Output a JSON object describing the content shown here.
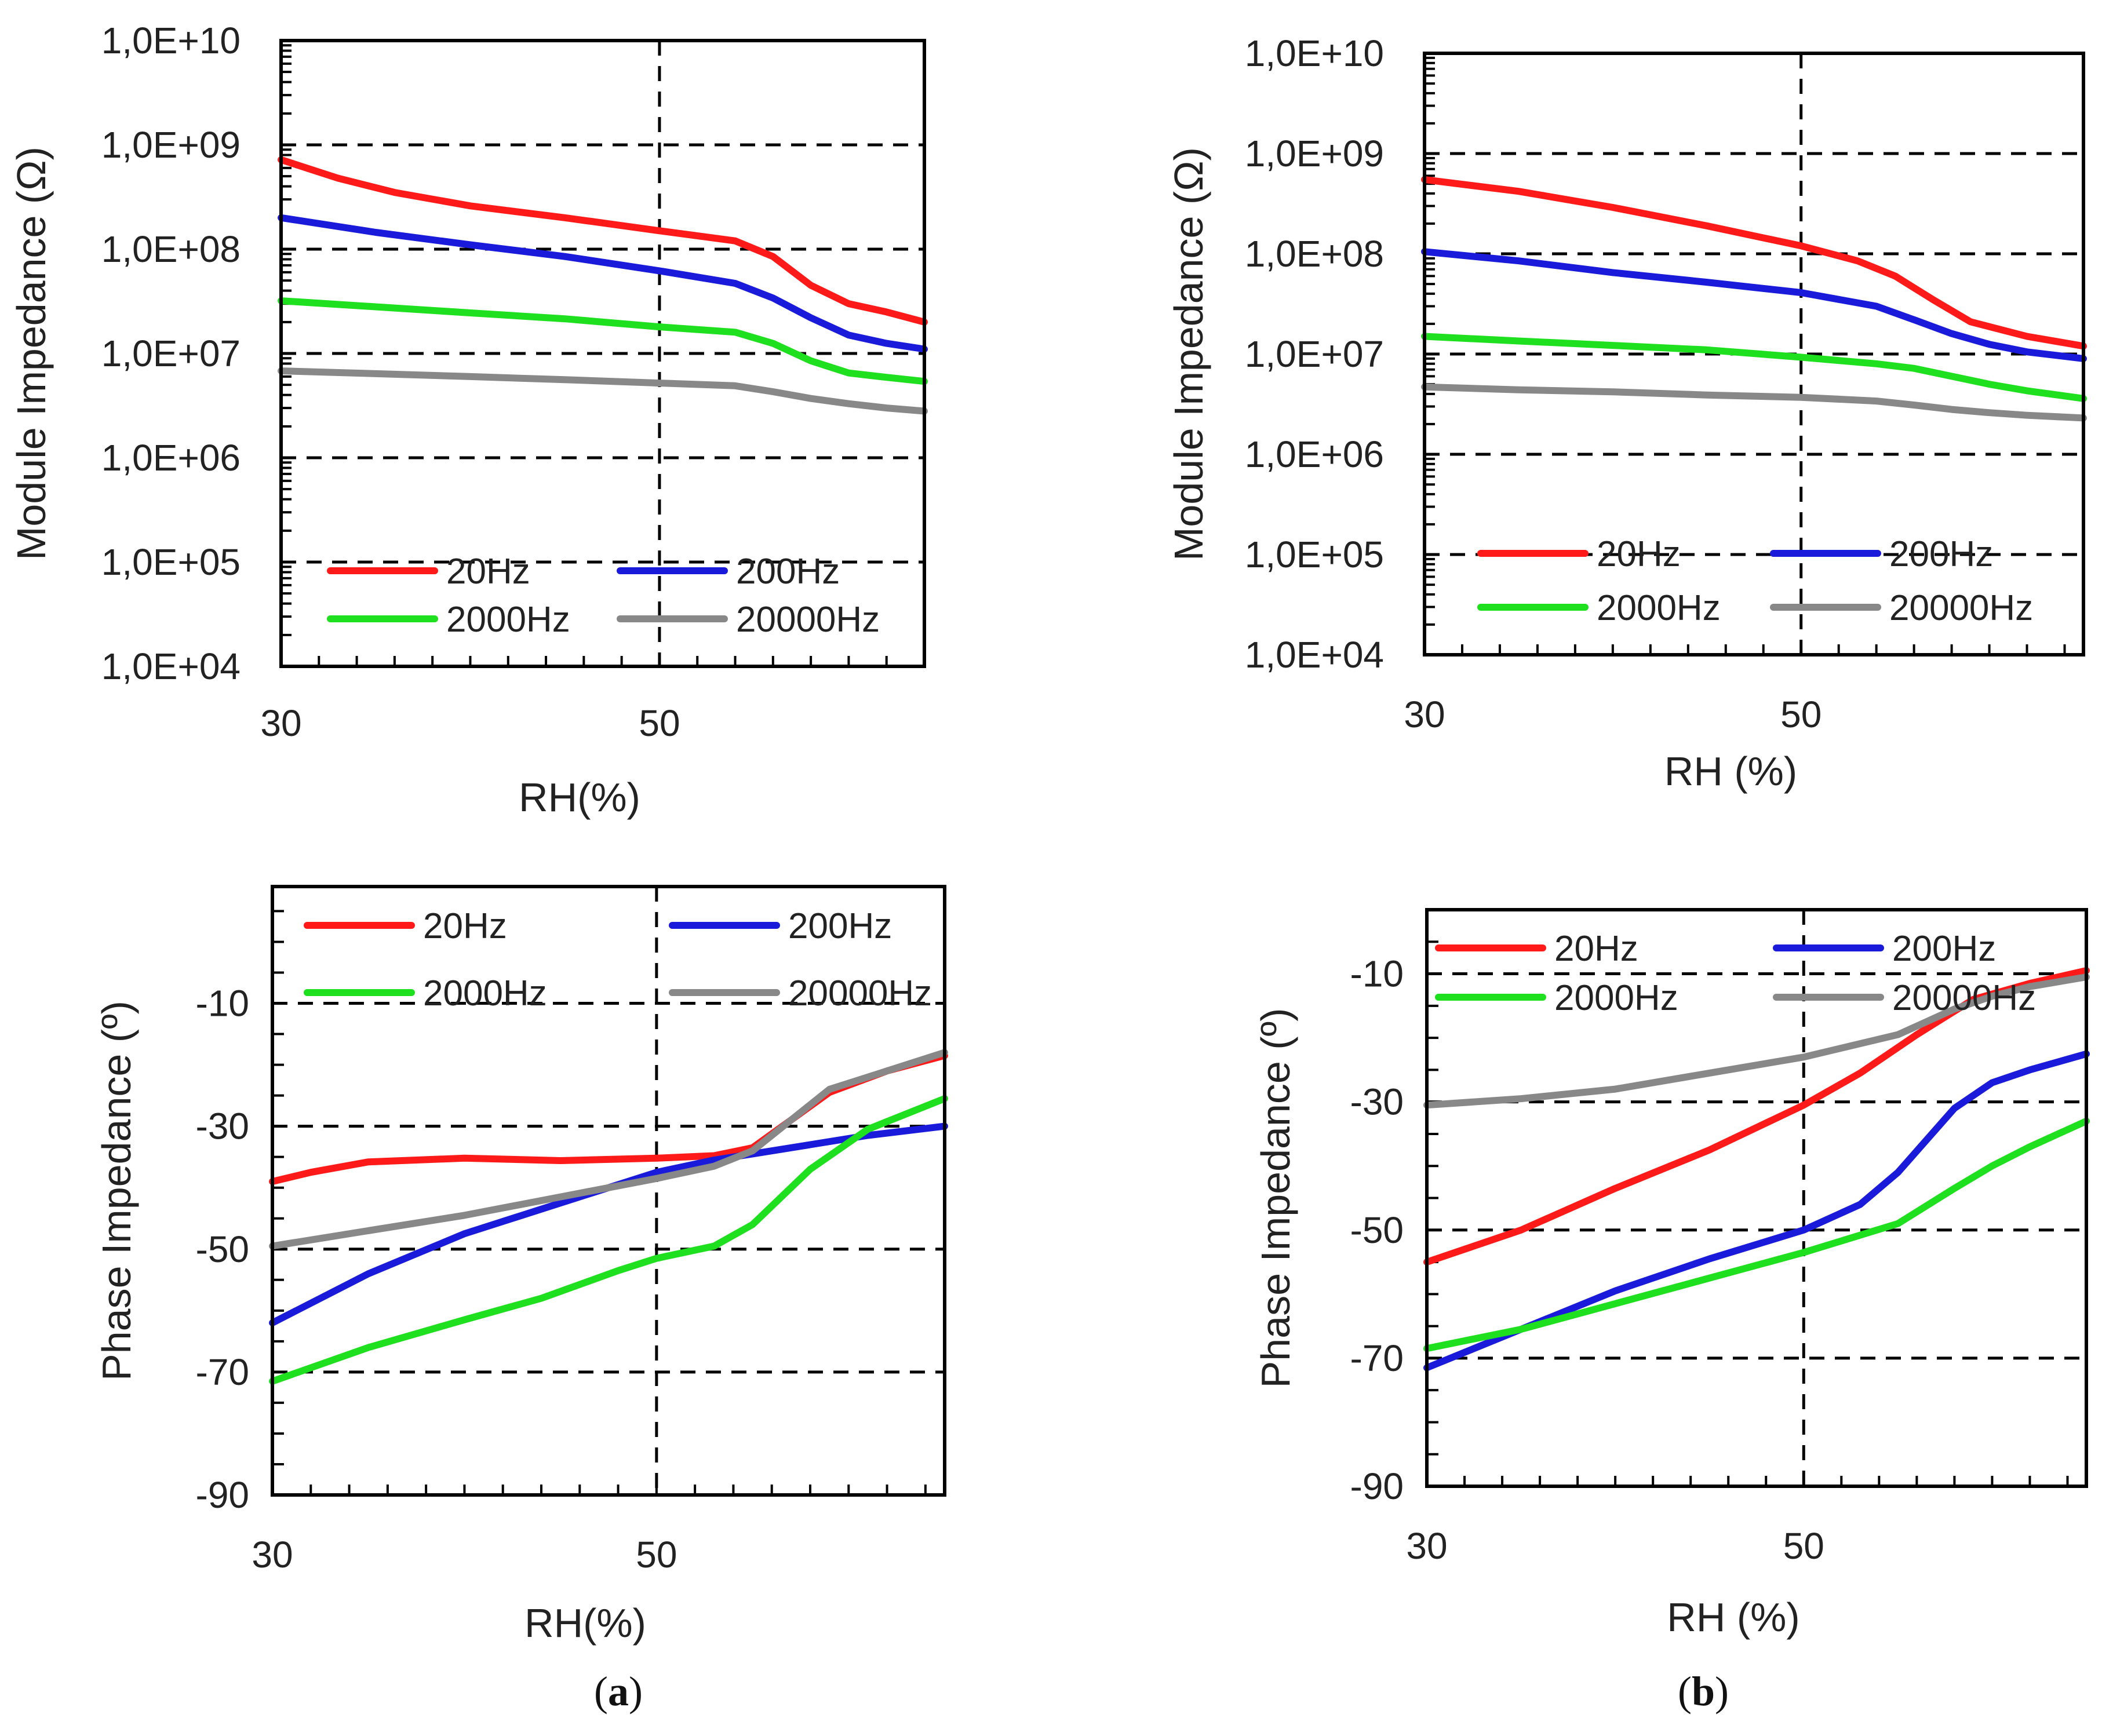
{
  "captions": [
    {
      "open": "(",
      "letter": "a",
      "close": ")"
    },
    {
      "open": "(",
      "letter": "b",
      "close": ")"
    }
  ],
  "chart_data": [
    {
      "id": "a-module",
      "type": "line",
      "scale": "log",
      "xlabel": "RH(%)",
      "ylabel": "Module Impedance (Ω)",
      "xlim": [
        30,
        64
      ],
      "ylim": [
        10000,
        10000000000
      ],
      "xticks": [
        30,
        50
      ],
      "yticks": [
        10000,
        100000,
        1000000,
        10000000,
        100000000,
        1000000000,
        10000000000
      ],
      "ytick_labels": [
        "1,0E+04",
        "1,0E+05",
        "1,0E+06",
        "1,0E+07",
        "1,0E+08",
        "1,0E+09",
        "1,0E+10"
      ],
      "grid": "dashed at major ticks",
      "legend": "lower-left, inside plot",
      "series": [
        {
          "name": "20Hz",
          "color": "#ff1a1a",
          "points": [
            [
              30,
              720000000
            ],
            [
              33,
              480000000
            ],
            [
              36,
              350000000
            ],
            [
              40,
              260000000
            ],
            [
              45,
              200000000
            ],
            [
              50,
              150000000
            ],
            [
              54,
              120000000
            ],
            [
              56,
              85000000
            ],
            [
              58,
              45000000
            ],
            [
              60,
              30000000
            ],
            [
              62,
              25000000
            ],
            [
              64,
              20000000
            ]
          ]
        },
        {
          "name": "200Hz",
          "color": "#1a1adb",
          "points": [
            [
              30,
              200000000
            ],
            [
              35,
              145000000
            ],
            [
              40,
              110000000
            ],
            [
              45,
              85000000
            ],
            [
              50,
              62000000
            ],
            [
              54,
              47000000
            ],
            [
              56,
              34000000
            ],
            [
              58,
              22000000
            ],
            [
              60,
              15000000
            ],
            [
              62,
              12500000
            ],
            [
              64,
              11000000
            ]
          ]
        },
        {
          "name": "2000Hz",
          "color": "#1ee01e",
          "points": [
            [
              30,
              32000000
            ],
            [
              35,
              28000000
            ],
            [
              40,
              24500000
            ],
            [
              45,
              21500000
            ],
            [
              50,
              18000000
            ],
            [
              54,
              16000000
            ],
            [
              56,
              12500000
            ],
            [
              58,
              8500000
            ],
            [
              60,
              6500000
            ],
            [
              62,
              5900000
            ],
            [
              64,
              5400000
            ]
          ]
        },
        {
          "name": "20000Hz",
          "color": "#888888",
          "points": [
            [
              30,
              6800000
            ],
            [
              35,
              6400000
            ],
            [
              40,
              6000000
            ],
            [
              45,
              5600000
            ],
            [
              50,
              5200000
            ],
            [
              54,
              4900000
            ],
            [
              56,
              4300000
            ],
            [
              58,
              3700000
            ],
            [
              60,
              3300000
            ],
            [
              62,
              3000000
            ],
            [
              64,
              2800000
            ]
          ]
        }
      ]
    },
    {
      "id": "b-module",
      "type": "line",
      "scale": "log",
      "xlabel": "RH (%)",
      "ylabel": "Module Impedance (Ω)",
      "xlim": [
        30,
        65
      ],
      "ylim": [
        10000,
        10000000000
      ],
      "xticks": [
        30,
        50
      ],
      "yticks": [
        10000,
        100000,
        1000000,
        10000000,
        100000000,
        1000000000,
        10000000000
      ],
      "ytick_labels": [
        "1,0E+04",
        "1,0E+05",
        "1,0E+06",
        "1,0E+07",
        "1,0E+08",
        "1,0E+09",
        "1,0E+10"
      ],
      "grid": "dashed at major ticks",
      "legend": "lower-left, inside plot",
      "series": [
        {
          "name": "20Hz",
          "color": "#ff1a1a",
          "points": [
            [
              30,
              550000000
            ],
            [
              35,
              420000000
            ],
            [
              40,
              290000000
            ],
            [
              45,
              190000000
            ],
            [
              50,
              120000000
            ],
            [
              53,
              85000000
            ],
            [
              55,
              60000000
            ],
            [
              57,
              35000000
            ],
            [
              59,
              21000000
            ],
            [
              62,
              15000000
            ],
            [
              65,
              12000000
            ]
          ]
        },
        {
          "name": "200Hz",
          "color": "#1a1adb",
          "points": [
            [
              30,
              105000000
            ],
            [
              35,
              85000000
            ],
            [
              40,
              65000000
            ],
            [
              45,
              52000000
            ],
            [
              50,
              41000000
            ],
            [
              54,
              30000000
            ],
            [
              56,
              22000000
            ],
            [
              58,
              16000000
            ],
            [
              60,
              12500000
            ],
            [
              62,
              10500000
            ],
            [
              65,
              9000000
            ]
          ]
        },
        {
          "name": "2000Hz",
          "color": "#1ee01e",
          "points": [
            [
              30,
              15000000
            ],
            [
              35,
              13500000
            ],
            [
              40,
              12200000
            ],
            [
              45,
              11000000
            ],
            [
              50,
              9300000
            ],
            [
              54,
              8000000
            ],
            [
              56,
              7200000
            ],
            [
              58,
              6000000
            ],
            [
              60,
              5000000
            ],
            [
              62,
              4300000
            ],
            [
              65,
              3600000
            ]
          ]
        },
        {
          "name": "20000Hz",
          "color": "#888888",
          "points": [
            [
              30,
              4700000
            ],
            [
              35,
              4400000
            ],
            [
              40,
              4200000
            ],
            [
              45,
              3900000
            ],
            [
              50,
              3700000
            ],
            [
              54,
              3400000
            ],
            [
              56,
              3100000
            ],
            [
              58,
              2800000
            ],
            [
              60,
              2600000
            ],
            [
              62,
              2450000
            ],
            [
              65,
              2300000
            ]
          ]
        }
      ]
    },
    {
      "id": "a-phase",
      "type": "line",
      "scale": "linear",
      "xlabel": "RH(%)",
      "ylabel": "Phase Impedance (º)",
      "xlim": [
        30,
        65
      ],
      "ylim": [
        -90,
        9
      ],
      "xticks": [
        30,
        50
      ],
      "yticks": [
        -90,
        -70,
        -50,
        -30,
        -10
      ],
      "ytick_labels": [
        "-90",
        "-70",
        "-50",
        "-30",
        "-10"
      ],
      "grid": "dashed at major ticks",
      "legend": "top, inside plot",
      "series": [
        {
          "name": "20Hz",
          "color": "#ff1a1a",
          "points": [
            [
              30,
              -39
            ],
            [
              32,
              -37.5
            ],
            [
              35,
              -35.8
            ],
            [
              40,
              -35.2
            ],
            [
              45,
              -35.6
            ],
            [
              50,
              -35.2
            ],
            [
              53,
              -34.8
            ],
            [
              55,
              -33.5
            ],
            [
              57,
              -29
            ],
            [
              59,
              -24.5
            ],
            [
              62,
              -21
            ],
            [
              65,
              -18.5
            ]
          ]
        },
        {
          "name": "200Hz",
          "color": "#1a1adb",
          "points": [
            [
              30,
              -62
            ],
            [
              35,
              -54
            ],
            [
              40,
              -47.5
            ],
            [
              45,
              -42.5
            ],
            [
              50,
              -37.5
            ],
            [
              53,
              -35.5
            ],
            [
              55,
              -34.5
            ],
            [
              58,
              -33
            ],
            [
              61,
              -31.5
            ],
            [
              65,
              -30
            ]
          ]
        },
        {
          "name": "2000Hz",
          "color": "#1ee01e",
          "points": [
            [
              30,
              -71.5
            ],
            [
              35,
              -66
            ],
            [
              40,
              -61.5
            ],
            [
              44,
              -58
            ],
            [
              48,
              -53.5
            ],
            [
              50,
              -51.5
            ],
            [
              53,
              -49.5
            ],
            [
              55,
              -46
            ],
            [
              58,
              -37
            ],
            [
              61,
              -30.5
            ],
            [
              65,
              -25.5
            ]
          ]
        },
        {
          "name": "20000Hz",
          "color": "#888888",
          "points": [
            [
              30,
              -49.5
            ],
            [
              35,
              -47
            ],
            [
              40,
              -44.5
            ],
            [
              45,
              -41.5
            ],
            [
              50,
              -38.5
            ],
            [
              53,
              -36.5
            ],
            [
              55,
              -34
            ],
            [
              57,
              -29
            ],
            [
              59,
              -24
            ],
            [
              62,
              -21
            ],
            [
              65,
              -18
            ]
          ]
        }
      ]
    },
    {
      "id": "b-phase",
      "type": "line",
      "scale": "linear",
      "xlabel": "RH (%)",
      "ylabel": "Phase Impedance (º)",
      "xlim": [
        30,
        65
      ],
      "ylim": [
        -90,
        0
      ],
      "xticks": [
        30,
        50
      ],
      "yticks": [
        -90,
        -70,
        -50,
        -30,
        -10
      ],
      "ytick_labels": [
        "-90",
        "-70",
        "-50",
        "-30",
        "-10"
      ],
      "grid": "dashed at major ticks",
      "legend": "top, inside plot",
      "series": [
        {
          "name": "20Hz",
          "color": "#ff1a1a",
          "points": [
            [
              30,
              -55
            ],
            [
              35,
              -50
            ],
            [
              40,
              -43.5
            ],
            [
              45,
              -37.5
            ],
            [
              50,
              -30.5
            ],
            [
              53,
              -25.5
            ],
            [
              56,
              -19.5
            ],
            [
              59,
              -14
            ],
            [
              62,
              -11.5
            ],
            [
              65,
              -9.5
            ]
          ]
        },
        {
          "name": "200Hz",
          "color": "#1a1adb",
          "points": [
            [
              30,
              -71.5
            ],
            [
              35,
              -65.5
            ],
            [
              40,
              -59.5
            ],
            [
              45,
              -54.5
            ],
            [
              50,
              -50
            ],
            [
              53,
              -46
            ],
            [
              55,
              -41
            ],
            [
              58,
              -31
            ],
            [
              60,
              -27
            ],
            [
              62,
              -25
            ],
            [
              65,
              -22.5
            ]
          ]
        },
        {
          "name": "2000Hz",
          "color": "#1ee01e",
          "points": [
            [
              30,
              -68.5
            ],
            [
              35,
              -65.5
            ],
            [
              40,
              -61.5
            ],
            [
              45,
              -57.5
            ],
            [
              50,
              -53.5
            ],
            [
              55,
              -49
            ],
            [
              58,
              -43.5
            ],
            [
              60,
              -40
            ],
            [
              62,
              -37
            ],
            [
              65,
              -33
            ]
          ]
        },
        {
          "name": "20000Hz",
          "color": "#888888",
          "points": [
            [
              30,
              -30.5
            ],
            [
              35,
              -29.5
            ],
            [
              40,
              -28
            ],
            [
              45,
              -25.5
            ],
            [
              50,
              -23
            ],
            [
              55,
              -19.5
            ],
            [
              58,
              -15.5
            ],
            [
              60,
              -13.5
            ],
            [
              62,
              -12
            ],
            [
              65,
              -10.5
            ]
          ]
        }
      ]
    }
  ]
}
